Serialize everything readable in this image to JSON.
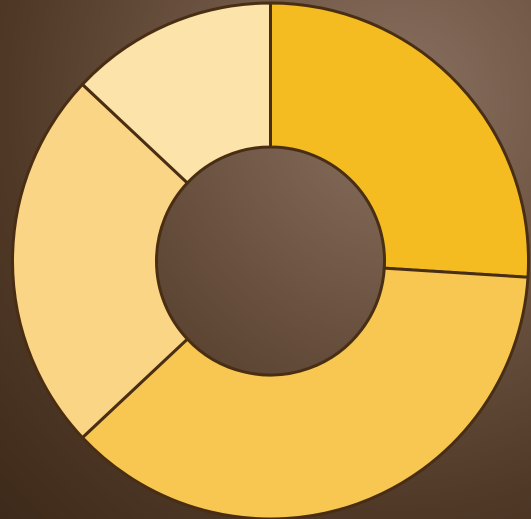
{
  "chart_data": {
    "type": "donut",
    "values": [
      26,
      37,
      24,
      13
    ],
    "colors": [
      "#f5bc22",
      "#f7c752",
      "#f9d585",
      "#fce3aa"
    ]
  }
}
